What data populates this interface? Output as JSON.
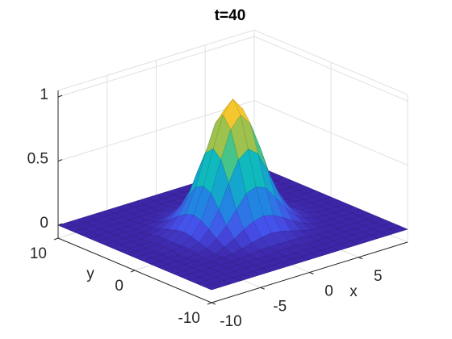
{
  "chart_data": {
    "type": "surface",
    "title": "t=40",
    "xlabel": "x",
    "ylabel": "y",
    "colormap": "parula",
    "grid": true,
    "xlim": [
      -10,
      10
    ],
    "ylim": [
      -10,
      10
    ],
    "zlim": [
      -0.1,
      1.05
    ],
    "xticks": [
      -10,
      -5,
      0,
      5
    ],
    "yticks": [
      -10,
      0,
      10
    ],
    "zticks": [
      0,
      0.5,
      1
    ],
    "x": [
      -10,
      -9,
      -8,
      -7,
      -6,
      -5,
      -4,
      -3,
      -2,
      -1,
      0,
      1,
      2,
      3,
      4,
      5,
      6,
      7,
      8,
      9,
      10
    ],
    "y": [
      -10,
      -9,
      -8,
      -7,
      -6,
      -5,
      -4,
      -3,
      -2,
      -1,
      0,
      1,
      2,
      3,
      4,
      5,
      6,
      7,
      8,
      9,
      10
    ],
    "z": [
      [
        0,
        0,
        0,
        0,
        0,
        0,
        0,
        0,
        0,
        0,
        0,
        0,
        0,
        0,
        0,
        0,
        0,
        0,
        0,
        0,
        0
      ],
      [
        0,
        0,
        0,
        0,
        0,
        0,
        0,
        0,
        0,
        0,
        0,
        0,
        0,
        0,
        0,
        0,
        0,
        0,
        0,
        0,
        0
      ],
      [
        0,
        0,
        0,
        0,
        0,
        0,
        0,
        0,
        0,
        0,
        0,
        0,
        0,
        0,
        0,
        0,
        0,
        0,
        0,
        0,
        0
      ],
      [
        0,
        0,
        0,
        0,
        0,
        0,
        0,
        0,
        0,
        0.01,
        0.01,
        0.01,
        0,
        0,
        0,
        0,
        0,
        0,
        0,
        0,
        0
      ],
      [
        0,
        0,
        0,
        0,
        0,
        0,
        0,
        0.01,
        0.02,
        0.02,
        0.02,
        0.02,
        0.02,
        0.01,
        0,
        0,
        0,
        0,
        0,
        0,
        0
      ],
      [
        0,
        0,
        0,
        0,
        0,
        0.01,
        0.01,
        0.03,
        0.05,
        0.07,
        0.08,
        0.07,
        0.05,
        0.03,
        0.01,
        0.01,
        0,
        0,
        0,
        0,
        0
      ],
      [
        0,
        0,
        0,
        0,
        0,
        0.01,
        0.04,
        0.08,
        0.13,
        0.17,
        0.19,
        0.17,
        0.13,
        0.08,
        0.04,
        0.01,
        0,
        0,
        0,
        0,
        0
      ],
      [
        0,
        0,
        0,
        0,
        0.01,
        0.03,
        0.08,
        0.16,
        0.26,
        0.36,
        0.39,
        0.36,
        0.26,
        0.16,
        0.08,
        0.03,
        0.01,
        0,
        0,
        0,
        0
      ],
      [
        0,
        0,
        0,
        0,
        0.02,
        0.05,
        0.13,
        0.26,
        0.44,
        0.6,
        0.66,
        0.6,
        0.44,
        0.26,
        0.13,
        0.05,
        0.02,
        0,
        0,
        0,
        0
      ],
      [
        0,
        0,
        0,
        0.01,
        0.02,
        0.07,
        0.17,
        0.36,
        0.6,
        0.81,
        0.9,
        0.81,
        0.6,
        0.36,
        0.17,
        0.07,
        0.02,
        0.01,
        0,
        0,
        0
      ],
      [
        0,
        0,
        0,
        0.01,
        0.02,
        0.08,
        0.19,
        0.39,
        0.66,
        0.9,
        1,
        0.9,
        0.66,
        0.39,
        0.19,
        0.08,
        0.02,
        0.01,
        0,
        0,
        0
      ],
      [
        0,
        0,
        0,
        0.01,
        0.02,
        0.07,
        0.17,
        0.36,
        0.6,
        0.81,
        0.9,
        0.81,
        0.6,
        0.36,
        0.17,
        0.07,
        0.02,
        0.01,
        0,
        0,
        0
      ],
      [
        0,
        0,
        0,
        0,
        0.02,
        0.05,
        0.13,
        0.26,
        0.44,
        0.6,
        0.66,
        0.6,
        0.44,
        0.26,
        0.13,
        0.05,
        0.02,
        0,
        0,
        0,
        0
      ],
      [
        0,
        0,
        0,
        0,
        0.01,
        0.03,
        0.08,
        0.16,
        0.26,
        0.36,
        0.39,
        0.36,
        0.26,
        0.16,
        0.08,
        0.03,
        0.01,
        0,
        0,
        0,
        0
      ],
      [
        0,
        0,
        0,
        0,
        0,
        0.01,
        0.04,
        0.08,
        0.13,
        0.17,
        0.19,
        0.17,
        0.13,
        0.08,
        0.04,
        0.01,
        0,
        0,
        0,
        0,
        0
      ],
      [
        0,
        0,
        0,
        0,
        0,
        0.01,
        0.01,
        0.03,
        0.05,
        0.07,
        0.08,
        0.07,
        0.05,
        0.03,
        0.01,
        0.01,
        0,
        0,
        0,
        0,
        0
      ],
      [
        0,
        0,
        0,
        0,
        0,
        0,
        0,
        0.01,
        0.02,
        0.02,
        0.02,
        0.02,
        0.02,
        0.01,
        0,
        0,
        0,
        0,
        0,
        0,
        0
      ],
      [
        0,
        0,
        0,
        0,
        0,
        0,
        0,
        0,
        0,
        0.01,
        0.01,
        0.01,
        0,
        0,
        0,
        0,
        0,
        0,
        0,
        0,
        0
      ],
      [
        0,
        0,
        0,
        0,
        0,
        0,
        0,
        0,
        0,
        0,
        0,
        0,
        0,
        0,
        0,
        0,
        0,
        0,
        0,
        0,
        0
      ],
      [
        0,
        0,
        0,
        0,
        0,
        0,
        0,
        0,
        0,
        0,
        0,
        0,
        0,
        0,
        0,
        0,
        0,
        0,
        0,
        0,
        0
      ],
      [
        0,
        0,
        0,
        0,
        0,
        0,
        0,
        0,
        0,
        0,
        0,
        0,
        0,
        0,
        0,
        0,
        0,
        0,
        0,
        0,
        0
      ]
    ]
  }
}
